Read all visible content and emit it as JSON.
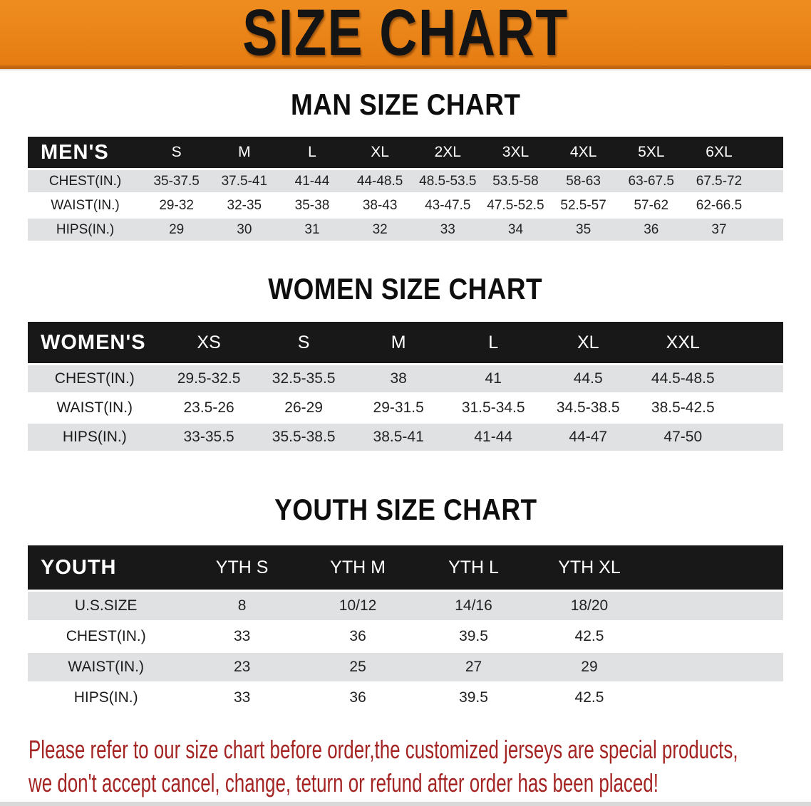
{
  "banner": {
    "title": "SIZE CHART",
    "bg_color": "#e8811b",
    "border_color": "#c2660f",
    "text_color": "#141414"
  },
  "colors": {
    "table_header_bg": "#181818",
    "table_header_text": "#ffffff",
    "row_stripe": "#dfe1e2",
    "disclaimer_text": "#a32422"
  },
  "sections": [
    {
      "heading": "MAN SIZE CHART",
      "table": {
        "header_label": "MEN'S",
        "columns": [
          "S",
          "M",
          "L",
          "XL",
          "2XL",
          "3XL",
          "4XL",
          "5XL",
          "6XL"
        ],
        "rows": [
          {
            "label": "CHEST(IN.)",
            "values": [
              "35-37.5",
              "37.5-41",
              "41-44",
              "44-48.5",
              "48.5-53.5",
              "53.5-58",
              "58-63",
              "63-67.5",
              "67.5-72"
            ]
          },
          {
            "label": "WAIST(IN.)",
            "values": [
              "29-32",
              "32-35",
              "35-38",
              "38-43",
              "43-47.5",
              "47.5-52.5",
              "52.5-57",
              "57-62",
              "62-66.5"
            ]
          },
          {
            "label": "HIPS(IN.)",
            "values": [
              "29",
              "30",
              "31",
              "32",
              "33",
              "34",
              "35",
              "36",
              "37"
            ]
          }
        ]
      }
    },
    {
      "heading": "WOMEN SIZE CHART",
      "table": {
        "header_label": "WOMEN'S",
        "columns": [
          "XS",
          "S",
          "M",
          "L",
          "XL",
          "XXL"
        ],
        "rows": [
          {
            "label": "CHEST(IN.)",
            "values": [
              "29.5-32.5",
              "32.5-35.5",
              "38",
              "41",
              "44.5",
              "44.5-48.5"
            ]
          },
          {
            "label": "WAIST(IN.)",
            "values": [
              "23.5-26",
              "26-29",
              "29-31.5",
              "31.5-34.5",
              "34.5-38.5",
              "38.5-42.5"
            ]
          },
          {
            "label": "HIPS(IN.)",
            "values": [
              "33-35.5",
              "35.5-38.5",
              "38.5-41",
              "41-44",
              "44-47",
              "47-50"
            ]
          }
        ]
      }
    },
    {
      "heading": "YOUTH SIZE CHART",
      "table": {
        "header_label": "YOUTH",
        "columns": [
          "YTH S",
          "YTH M",
          "YTH L",
          "YTH XL"
        ],
        "rows": [
          {
            "label": "U.S.SIZE",
            "values": [
              "8",
              "10/12",
              "14/16",
              "18/20"
            ]
          },
          {
            "label": "CHEST(IN.)",
            "values": [
              "33",
              "36",
              "39.5",
              "42.5"
            ]
          },
          {
            "label": "WAIST(IN.)",
            "values": [
              "23",
              "25",
              "27",
              "29"
            ]
          },
          {
            "label": "HIPS(IN.)",
            "values": [
              "33",
              "36",
              "39.5",
              "42.5"
            ]
          }
        ]
      }
    }
  ],
  "disclaimer": {
    "line1": "Please refer to our size chart before order,the customized jerseys are special products,",
    "line2": "we don't accept cancel, change, teturn or refund after order has been placed!"
  }
}
